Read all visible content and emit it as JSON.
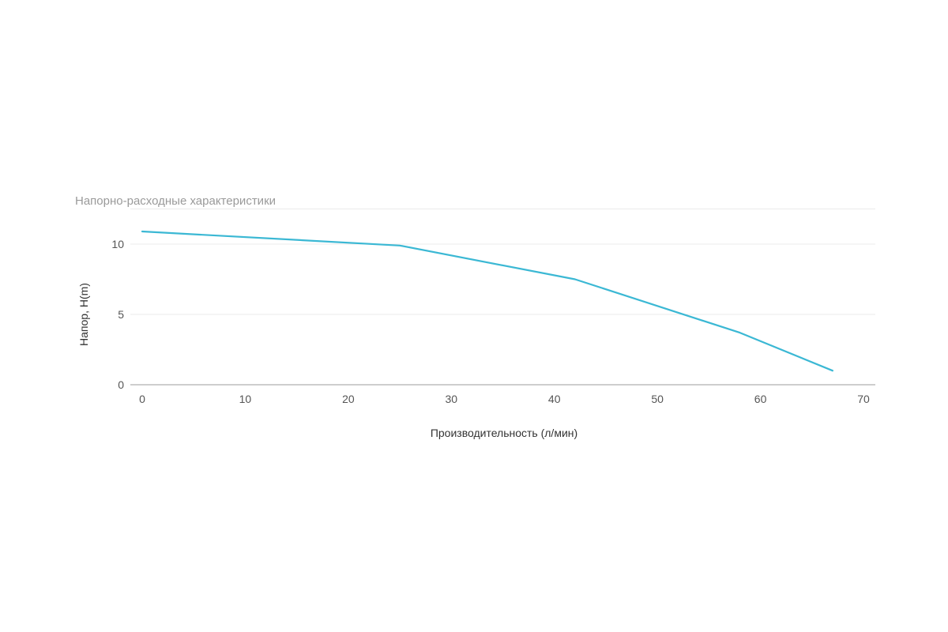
{
  "chart_data": {
    "type": "line",
    "title": "Напорно-расходные характеристики",
    "xlabel": "Производительность (л/мин)",
    "ylabel": "Напор, H(m)",
    "xlim": [
      0,
      70
    ],
    "ylim": [
      0,
      12.5
    ],
    "x_ticks": [
      "0",
      "10",
      "20",
      "30",
      "40",
      "50",
      "60",
      "70"
    ],
    "y_ticks": [
      "0",
      "5",
      "10"
    ],
    "grid": true,
    "series": [
      {
        "color": "#3bb8d4",
        "points": [
          {
            "x": 0,
            "y": 10.9
          },
          {
            "x": 25,
            "y": 9.9
          },
          {
            "x": 42,
            "y": 7.5
          },
          {
            "x": 58,
            "y": 3.7
          },
          {
            "x": 67,
            "y": 1.0
          }
        ]
      }
    ]
  }
}
